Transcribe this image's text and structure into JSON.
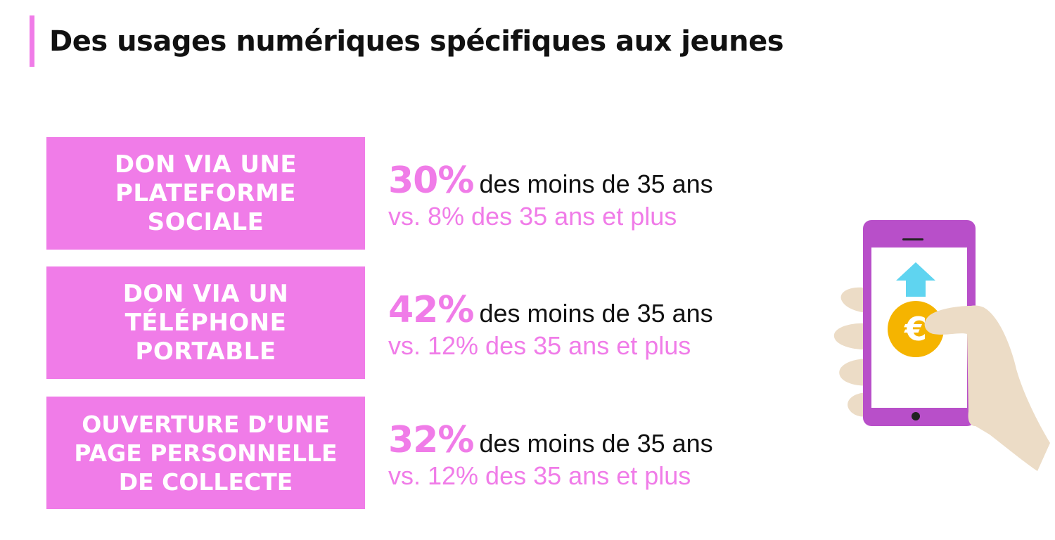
{
  "header": {
    "title": "Des usages numériques spécifiques aux jeunes"
  },
  "stats": [
    {
      "label": "DON VIA UNE\nPLATEFORME\nSOCIALE",
      "percent": "30%",
      "young_text": "des moins de 35 ans",
      "older_text": "vs. 8% des 35 ans et plus"
    },
    {
      "label": "DON VIA UN\nTÉLÉPHONE\nPORTABLE",
      "percent": "42%",
      "young_text": "des moins de 35 ans",
      "older_text": "vs. 12% des 35 ans et plus"
    },
    {
      "label": "OUVERTURE D’UNE\nPAGE PERSONNELLE\nDE COLLECTE",
      "percent": "32%",
      "young_text": "des moins de 35 ans",
      "older_text": "vs. 12% des 35 ans et plus"
    }
  ],
  "illustration": {
    "icon": "hand-holding-phone-icon",
    "currency_symbol": "€",
    "colors": {
      "phone": "#b84fc9",
      "screen": "#ffffff",
      "arrow": "#5fd4f0",
      "coin": "#f5b400",
      "hand": "#ecdcc6"
    }
  },
  "colors": {
    "accent": "#f07ce8",
    "text": "#111111"
  }
}
